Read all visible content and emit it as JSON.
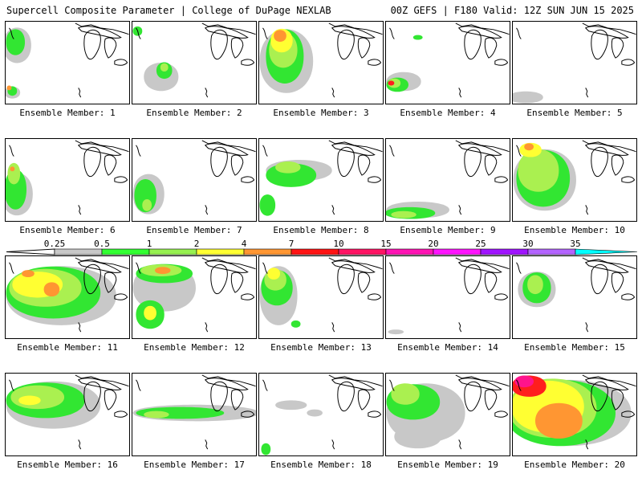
{
  "header": {
    "title": "Supercell Composite Parameter | College of DuPage NEXLAB",
    "run_info": "00Z GEFS | F180 Valid: 12Z SUN JUN 15 2025"
  },
  "member_label_prefix": "Ensemble Member:",
  "members": [
    {
      "id": "1",
      "label": "Ensemble Member: 1"
    },
    {
      "id": "2",
      "label": "Ensemble Member: 2"
    },
    {
      "id": "3",
      "label": "Ensemble Member: 3"
    },
    {
      "id": "4",
      "label": "Ensemble Member: 4"
    },
    {
      "id": "5",
      "label": "Ensemble Member: 5"
    },
    {
      "id": "6",
      "label": "Ensemble Member: 6"
    },
    {
      "id": "7",
      "label": "Ensemble Member: 7"
    },
    {
      "id": "8",
      "label": "Ensemble Member: 8"
    },
    {
      "id": "9",
      "label": "Ensemble Member: 9"
    },
    {
      "id": "10",
      "label": "Ensemble Member: 10"
    },
    {
      "id": "11",
      "label": "Ensemble Member: 11"
    },
    {
      "id": "12",
      "label": "Ensemble Member: 12"
    },
    {
      "id": "13",
      "label": "Ensemble Member: 13"
    },
    {
      "id": "14",
      "label": "Ensemble Member: 14"
    },
    {
      "id": "15",
      "label": "Ensemble Member: 15"
    },
    {
      "id": "16",
      "label": "Ensemble Member: 16"
    },
    {
      "id": "17",
      "label": "Ensemble Member: 17"
    },
    {
      "id": "18",
      "label": "Ensemble Member: 18"
    },
    {
      "id": "19",
      "label": "Ensemble Member: 19"
    },
    {
      "id": "20",
      "label": "Ensemble Member: 20"
    }
  ],
  "colorbar": {
    "ticks": [
      "0.25",
      "0.5",
      "1",
      "2",
      "4",
      "7",
      "10",
      "15",
      "20",
      "25",
      "30",
      "35"
    ],
    "colors": [
      "#c8c8c8",
      "#32ff32",
      "#96f050",
      "#ffff32",
      "#ff9632",
      "#ff1414",
      "#ff1464",
      "#ff14b4",
      "#ff14ff",
      "#a014ff",
      "#b464ff",
      "#00ffff"
    ]
  },
  "colors": {
    "gray": "#c8c8c8",
    "green": "#32e632",
    "lime": "#aaf050",
    "yellow": "#ffff32",
    "orange": "#ff9632",
    "red": "#ff1e1e",
    "magenta": "#ff148c"
  }
}
